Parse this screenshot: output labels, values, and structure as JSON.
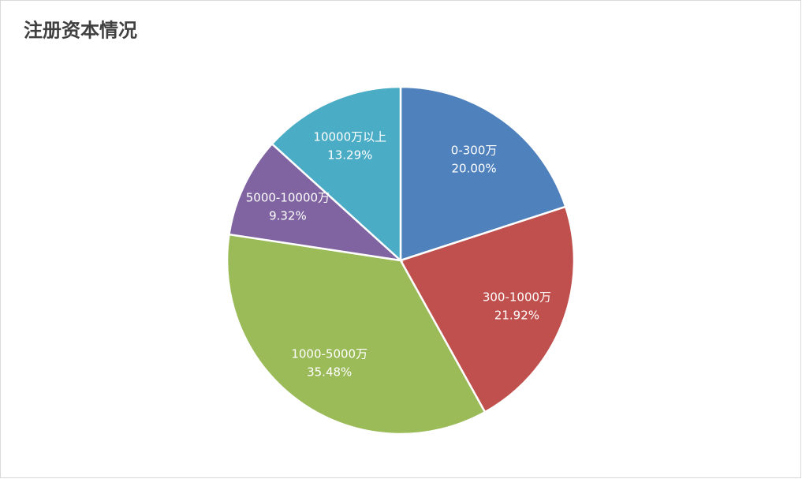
{
  "chart_data": {
    "type": "pie",
    "title": "注册资本情况",
    "categories": [
      "0-300万",
      "300-1000万",
      "1000-5000万",
      "5000-10000万",
      "10000万以上"
    ],
    "values": [
      20.0,
      21.92,
      35.48,
      9.32,
      13.29
    ],
    "value_labels": [
      "20.00%",
      "21.92%",
      "35.48%",
      "9.32%",
      "13.29%"
    ],
    "colors": [
      "#4f81bd",
      "#c0504d",
      "#9bbb59",
      "#8064a2",
      "#4bacc6"
    ]
  }
}
